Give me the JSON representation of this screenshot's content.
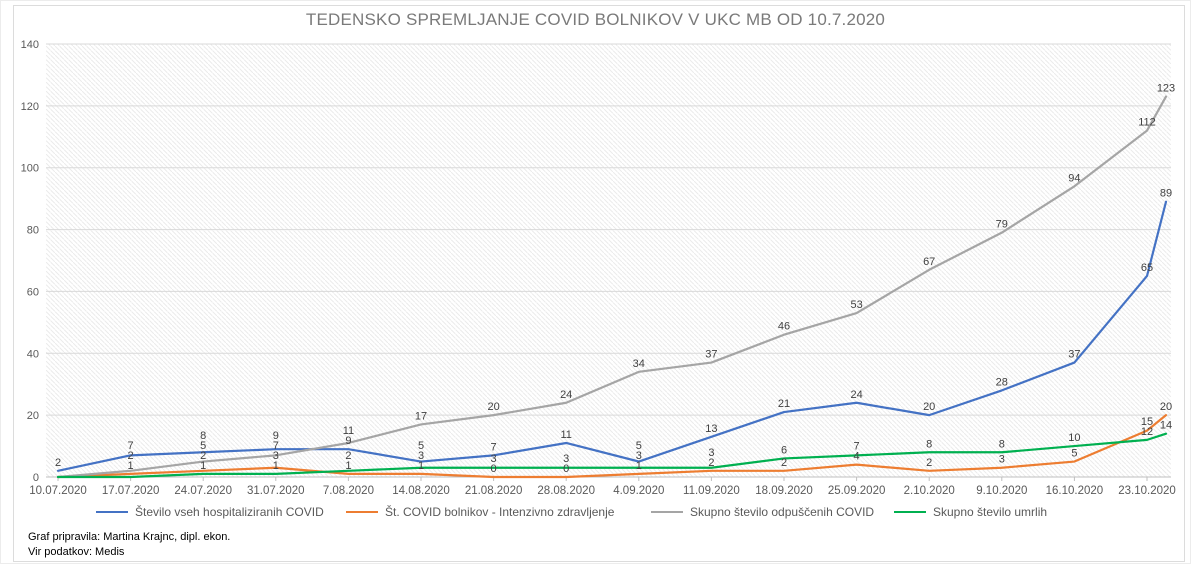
{
  "title": "TEDENSKO SPREMLJANJE COVID BOLNIKOV V UKC MB OD 10.7.2020",
  "chart_data": {
    "type": "line",
    "title": "TEDENSKO SPREMLJANJE COVID BOLNIKOV V UKC MB OD 10.7.2020",
    "categories": [
      "10.07.2020",
      "17.07.2020",
      "24.07.2020",
      "31.07.2020",
      "7.08.2020",
      "14.08.2020",
      "21.08.2020",
      "28.08.2020",
      "4.09.2020",
      "11.09.2020",
      "18.09.2020",
      "25.09.2020",
      "2.10.2020",
      "9.10.2020",
      "16.10.2020",
      "23.10.2020"
    ],
    "x_axis_note": "17 data points; final point has no x-axis label",
    "ylim": [
      0,
      140
    ],
    "yticks": [
      0,
      20,
      40,
      60,
      80,
      100,
      120,
      140
    ],
    "grid": "horizontal",
    "legend_position": "bottom",
    "plot_background": "diagonal-hatch",
    "series": [
      {
        "name": "Število vseh hospitaliziranih COVID",
        "color": "#4472C4",
        "values": [
          2,
          7,
          8,
          9,
          9,
          5,
          7,
          11,
          5,
          13,
          21,
          24,
          20,
          28,
          37,
          65,
          89
        ],
        "labels": [
          2,
          7,
          8,
          9,
          9,
          5,
          7,
          11,
          5,
          13,
          21,
          24,
          20,
          28,
          37,
          65,
          89
        ]
      },
      {
        "name": "Št. COVID bolnikov - Intenzivno zdravljenje",
        "color": "#ED7D31",
        "values": [
          0,
          1,
          2,
          3,
          1,
          1,
          0,
          0,
          1,
          2,
          2,
          4,
          2,
          3,
          5,
          15,
          20
        ],
        "labels": [
          null,
          1,
          2,
          3,
          1,
          1,
          0,
          0,
          1,
          2,
          2,
          4,
          2,
          3,
          5,
          15,
          20
        ]
      },
      {
        "name": "Skupno število odpuščenih COVID",
        "color": "#A5A5A5",
        "values": [
          0,
          2,
          5,
          7,
          11,
          17,
          20,
          24,
          34,
          37,
          46,
          53,
          67,
          79,
          94,
          112,
          123
        ],
        "labels": [
          null,
          2,
          5,
          7,
          11,
          17,
          20,
          24,
          34,
          37,
          46,
          53,
          67,
          79,
          94,
          112,
          123
        ]
      },
      {
        "name": "Skupno število umrlih",
        "color": "#00B050",
        "values": [
          0,
          0,
          1,
          1,
          2,
          3,
          3,
          3,
          3,
          3,
          6,
          7,
          8,
          8,
          10,
          12,
          14
        ],
        "labels": [
          null,
          null,
          1,
          1,
          2,
          3,
          3,
          3,
          3,
          3,
          6,
          7,
          8,
          8,
          10,
          12,
          14
        ]
      }
    ]
  },
  "footer": {
    "line1": "Graf pripravila: Martina Krajnc, dipl. ekon.",
    "line2": "Vir podatkov: Medis"
  }
}
